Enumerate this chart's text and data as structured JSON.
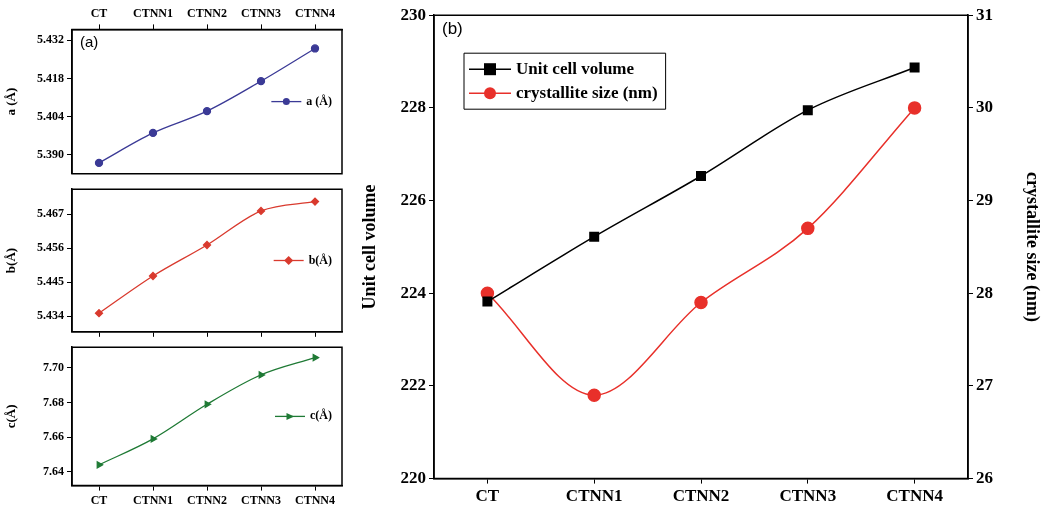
{
  "chart_data": [
    {
      "type": "line",
      "categories": [
        "CT",
        "CTNN1",
        "CTNN2",
        "CTNN3",
        "CTNN4"
      ],
      "ylabel": "a (Å)",
      "annotations": [
        "(a)"
      ],
      "series": [
        {
          "name": "a (Å)",
          "color": "#3b3a96",
          "values": [
            5.387,
            5.398,
            5.406,
            5.417,
            5.429
          ]
        }
      ],
      "ylim": [
        5.383,
        5.436
      ],
      "yticks": [
        {
          "value": 5.39,
          "label": "5.390"
        },
        5.404,
        5.418,
        5.432
      ],
      "marker": "circle",
      "legend": "right",
      "grid": false
    },
    {
      "type": "line",
      "categories": [
        null,
        null,
        null,
        null,
        null
      ],
      "ylabel": "b(Å)",
      "tick_labels": "y",
      "series": [
        {
          "name": "b(Å)",
          "color": "#d93a2e",
          "values": [
            5.435,
            5.447,
            5.457,
            5.468,
            5.471
          ]
        }
      ],
      "ylim": [
        5.429,
        5.475
      ],
      "yticks": [
        5.434,
        5.445,
        5.456,
        5.467
      ],
      "marker": "diamond",
      "legend": "right",
      "grid": false
    },
    {
      "type": "line",
      "categories": [
        "CT",
        "CTNN1",
        "CTNN2",
        "CTNN3",
        "CTNN4"
      ],
      "ylabel": "c(Å)",
      "series": [
        {
          "name": "c(Å)",
          "color": "#1f7a35",
          "values": [
            7.644,
            7.659,
            7.679,
            7.696,
            7.706
          ]
        }
      ],
      "ylim": [
        7.632,
        7.712
      ],
      "yticks": [
        7.64,
        7.66,
        7.68,
        {
          "value": 7.7,
          "label": "7.70"
        }
      ],
      "marker": "triangle",
      "legend": "right",
      "grid": false
    },
    {
      "type": "line",
      "categories": [
        "CT",
        "CTNN1",
        "CTNN2",
        "CTNN3",
        "CTNN4"
      ],
      "ylabel": "Unit cell volume",
      "y2label": "crystallite size (nm)",
      "annotations": [
        "(b)"
      ],
      "series": [
        {
          "name": "Unit cell volume",
          "color": "#000000",
          "marker": "square",
          "values": [
            223.82,
            225.22,
            226.53,
            227.95,
            228.87
          ]
        },
        {
          "name": "crystallite size (nm)",
          "color": "#e8302a",
          "marker": "circle",
          "axis": "y2",
          "values": [
            28.0,
            26.9,
            27.9,
            28.7,
            30.0
          ]
        }
      ],
      "ylim": [
        220,
        230
      ],
      "yticks": [
        220,
        222,
        224,
        226,
        228,
        230
      ],
      "y2lim": [
        26,
        31
      ],
      "y2ticks": [
        26,
        27,
        28,
        29,
        30,
        31
      ],
      "legend": "top left",
      "grid": false
    }
  ]
}
